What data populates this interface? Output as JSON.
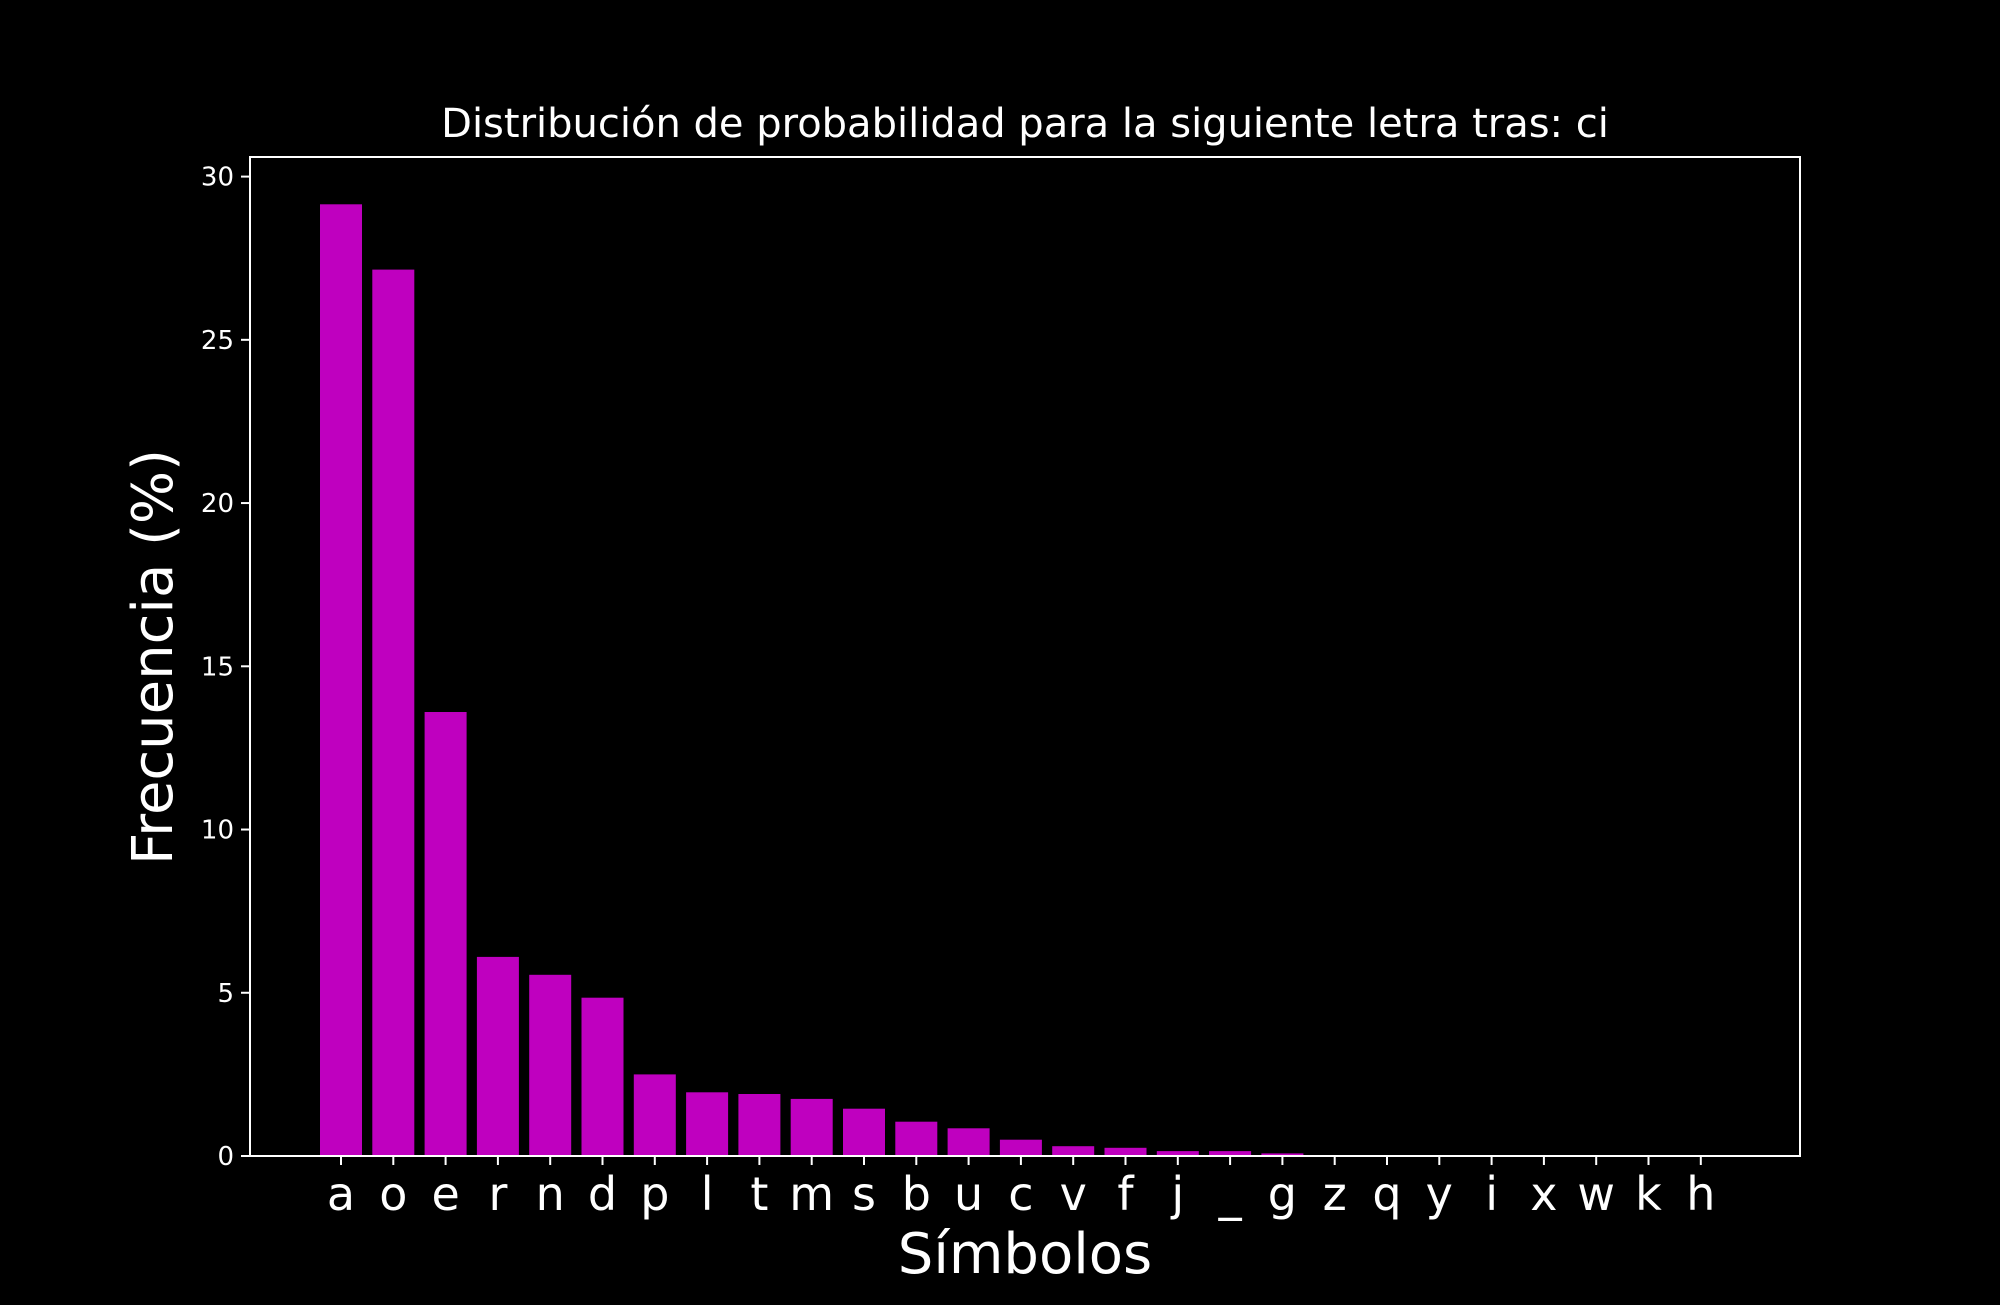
{
  "chart_data": {
    "type": "bar",
    "title": "Distribución de probabilidad para la siguiente letra tras: ci",
    "xlabel": "Símbolos",
    "ylabel": "Frecuencia (%)",
    "categories": [
      "a",
      "o",
      "e",
      "r",
      "n",
      "d",
      "p",
      "l",
      "t",
      "m",
      "s",
      "b",
      "u",
      "c",
      "v",
      "f",
      "j",
      "_",
      "g",
      "z",
      "q",
      "y",
      "i",
      "x",
      "w",
      "k",
      "h"
    ],
    "values": [
      29.15,
      27.15,
      13.6,
      6.1,
      5.55,
      4.85,
      2.5,
      1.95,
      1.9,
      1.75,
      1.45,
      1.05,
      0.85,
      0.5,
      0.3,
      0.25,
      0.15,
      0.15,
      0.08,
      0.01,
      0.01,
      0.01,
      0.01,
      0.0,
      0.0,
      0.0,
      0.0
    ],
    "ylim": [
      0,
      30.6
    ],
    "yticks": [
      0,
      5,
      10,
      15,
      20,
      25,
      30
    ],
    "grid": false,
    "colors": {
      "bar": "#bf00bf",
      "background": "#000000",
      "foreground": "#ffffff"
    }
  }
}
